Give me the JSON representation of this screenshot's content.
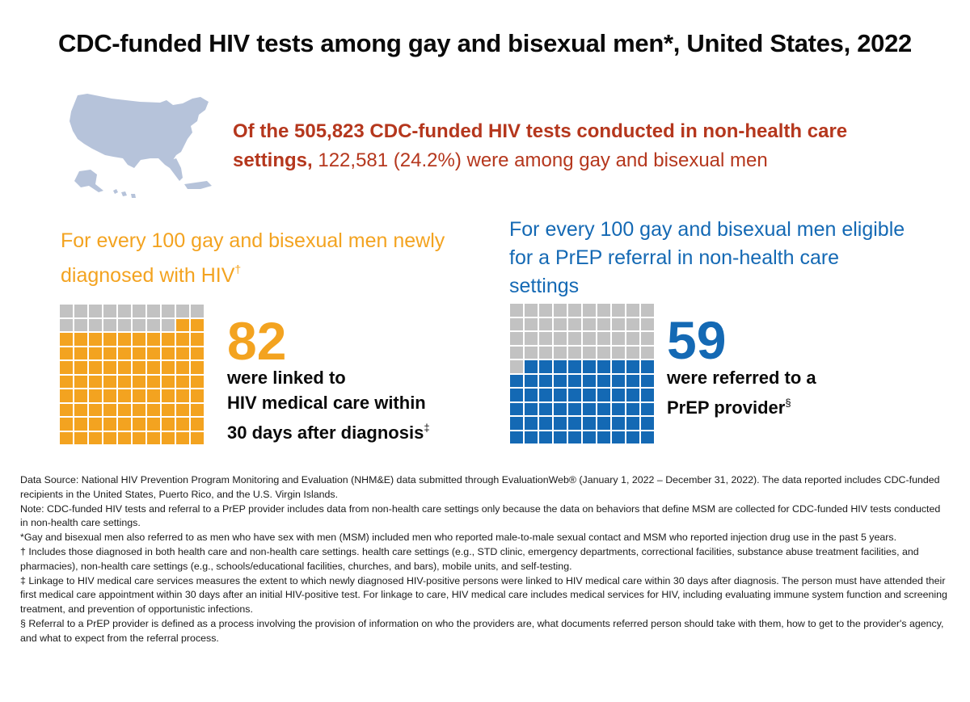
{
  "title": "CDC-funded HIV tests among gay and bisexual men*, United States, 2022",
  "headline": {
    "bold": "Of the 505,823 CDC-funded HIV tests conducted in non-health care settings,",
    "rest": " 122,581 (24.2%) were among gay and bisexual men"
  },
  "linkage": {
    "intro": "For every 100 gay and bisexual men newly diagnosed with HIV",
    "intro_mark": "†",
    "value": 82,
    "value_label": "82",
    "description_lines": [
      "were linked to",
      "HIV medical care within",
      "30 days after diagnosis"
    ],
    "mark": "‡"
  },
  "prep": {
    "intro": "For every 100 gay and bisexual men eligible for a PrEP referral in non-health care settings",
    "value": 59,
    "value_label": "59",
    "description_lines": [
      "were referred to a",
      "PrEP provider"
    ],
    "mark": "§"
  },
  "colors": {
    "orange": "#f3a320",
    "blue": "#1469b4",
    "gray": "#c2c2c2",
    "red": "#b5371d",
    "map": "#b6c3da"
  },
  "footnotes": [
    "Data Source: National HIV Prevention Program Monitoring and Evaluation (NHM&E) data submitted through EvaluationWeb® (January 1, 2022 – December 31, 2022). The data reported includes CDC-funded recipients in the United States, Puerto Rico, and the U.S. Virgin Islands.",
    "Note: CDC-funded HIV tests and referral to a PrEP provider includes data from non-health care settings only because the data on behaviors that define MSM are collected for CDC-funded HIV tests conducted in non-health care settings.",
    "*Gay and bisexual men also referred to as men who have sex with men (MSM) included men who reported male-to-male sexual contact and MSM who reported injection drug use in the past 5 years.",
    "† Includes those diagnosed in both health care and non-health care settings. health care settings (e.g., STD clinic, emergency departments, correctional facilities, substance abuse treatment facilities, and pharmacies), non-health care settings (e.g., schools/educational facilities, churches, and bars), mobile units, and self-testing.",
    "‡ Linkage to HIV medical care services measures the extent to which newly diagnosed HIV-positive persons were linked to HIV medical care within 30 days after diagnosis. The person must have attended their first medical care appointment within 30 days after an initial HIV-positive test. For linkage to care, HIV medical care includes medical services for HIV, including evaluating immune system function and screening treatment, and prevention of opportunistic infections.",
    "§ Referral to a PrEP provider is defined as a process involving the provision of information on who the providers are, what documents referred person should take with them, how to get to the provider's agency, and what to expect from the referral process."
  ]
}
